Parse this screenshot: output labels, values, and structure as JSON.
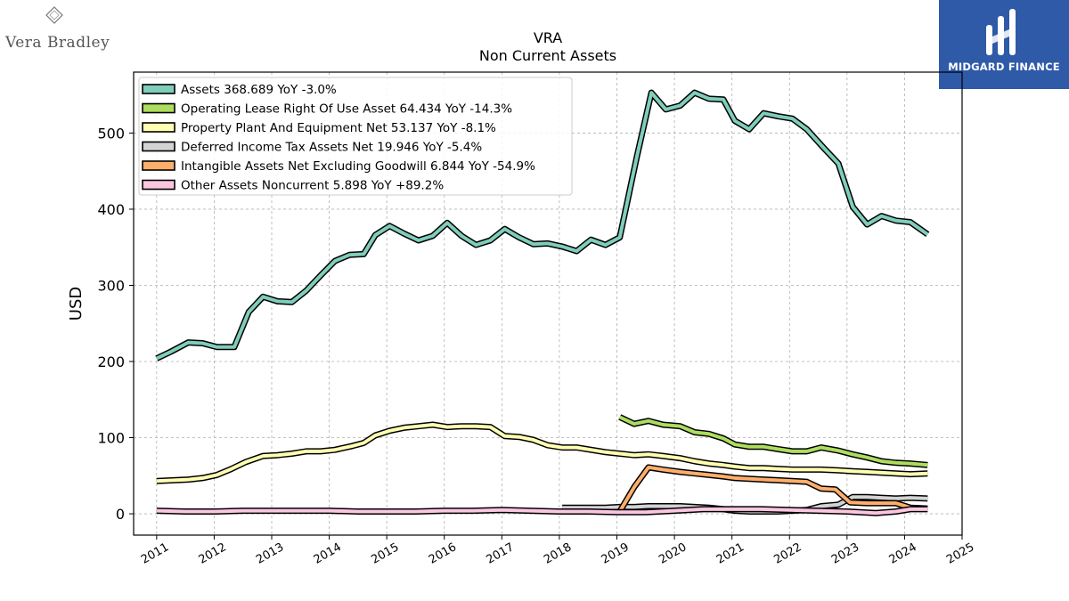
{
  "brand": {
    "left_name": "Vera Bradley",
    "right_name": "MIDGARD FINANCE"
  },
  "chart_data": {
    "type": "line",
    "title": "VRA",
    "subtitle": "Non Current  Assets",
    "xlabel": "",
    "ylabel": "USD",
    "xlim": [
      2010.6,
      2025.0
    ],
    "ylim": [
      -28,
      580
    ],
    "x_ticks": [
      2011,
      2012,
      2013,
      2014,
      2015,
      2016,
      2017,
      2018,
      2019,
      2020,
      2021,
      2022,
      2023,
      2024,
      2025
    ],
    "y_ticks": [
      0,
      100,
      200,
      300,
      400,
      500
    ],
    "grid": true,
    "legend_position": "top-left",
    "series": [
      {
        "name": "Assets  368.689 YoY -3.0%",
        "color": "#7fcdbb",
        "points": [
          [
            2011.0,
            204
          ],
          [
            2011.25,
            213
          ],
          [
            2011.55,
            225
          ],
          [
            2011.8,
            224
          ],
          [
            2012.05,
            219
          ],
          [
            2012.35,
            219
          ],
          [
            2012.6,
            265
          ],
          [
            2012.85,
            285
          ],
          [
            2013.1,
            279
          ],
          [
            2013.35,
            278
          ],
          [
            2013.6,
            293
          ],
          [
            2013.85,
            313
          ],
          [
            2014.1,
            332
          ],
          [
            2014.35,
            340
          ],
          [
            2014.6,
            341
          ],
          [
            2014.8,
            366
          ],
          [
            2015.05,
            378
          ],
          [
            2015.3,
            368
          ],
          [
            2015.55,
            359
          ],
          [
            2015.8,
            365
          ],
          [
            2016.05,
            382
          ],
          [
            2016.3,
            365
          ],
          [
            2016.55,
            353
          ],
          [
            2016.8,
            359
          ],
          [
            2017.05,
            374
          ],
          [
            2017.3,
            363
          ],
          [
            2017.55,
            354
          ],
          [
            2017.8,
            355
          ],
          [
            2018.05,
            351
          ],
          [
            2018.3,
            345
          ],
          [
            2018.55,
            360
          ],
          [
            2018.8,
            353
          ],
          [
            2019.05,
            363
          ],
          [
            2019.35,
            470
          ],
          [
            2019.6,
            553
          ],
          [
            2019.85,
            531
          ],
          [
            2020.1,
            536
          ],
          [
            2020.35,
            553
          ],
          [
            2020.6,
            545
          ],
          [
            2020.85,
            544
          ],
          [
            2021.05,
            516
          ],
          [
            2021.3,
            505
          ],
          [
            2021.55,
            526
          ],
          [
            2021.8,
            522
          ],
          [
            2022.05,
            519
          ],
          [
            2022.3,
            505
          ],
          [
            2022.6,
            480
          ],
          [
            2022.85,
            460
          ],
          [
            2023.1,
            403
          ],
          [
            2023.35,
            380
          ],
          [
            2023.6,
            391
          ],
          [
            2023.85,
            385
          ],
          [
            2024.1,
            383
          ],
          [
            2024.4,
            367
          ]
        ]
      },
      {
        "name": "Operating Lease Right Of Use Asset  64.434 YoY -14.3%",
        "color": "#addd5f",
        "points": [
          [
            2019.05,
            127
          ],
          [
            2019.3,
            118
          ],
          [
            2019.55,
            122
          ],
          [
            2019.8,
            117
          ],
          [
            2020.1,
            115
          ],
          [
            2020.35,
            107
          ],
          [
            2020.6,
            105
          ],
          [
            2020.85,
            99
          ],
          [
            2021.05,
            91
          ],
          [
            2021.3,
            88
          ],
          [
            2021.55,
            88
          ],
          [
            2021.8,
            85
          ],
          [
            2022.05,
            82
          ],
          [
            2022.3,
            82
          ],
          [
            2022.55,
            87
          ],
          [
            2022.85,
            83
          ],
          [
            2023.1,
            78
          ],
          [
            2023.35,
            74
          ],
          [
            2023.6,
            69
          ],
          [
            2023.85,
            67
          ],
          [
            2024.1,
            66
          ],
          [
            2024.4,
            64
          ]
        ]
      },
      {
        "name": "Property Plant And Equipment Net  53.137 YoY -8.1%",
        "color": "#ffffb2",
        "points": [
          [
            2011.0,
            43
          ],
          [
            2011.3,
            44
          ],
          [
            2011.55,
            45
          ],
          [
            2011.8,
            47
          ],
          [
            2012.05,
            51
          ],
          [
            2012.3,
            59
          ],
          [
            2012.55,
            68
          ],
          [
            2012.85,
            76
          ],
          [
            2013.1,
            77
          ],
          [
            2013.35,
            79
          ],
          [
            2013.6,
            82
          ],
          [
            2013.85,
            82
          ],
          [
            2014.1,
            84
          ],
          [
            2014.4,
            89
          ],
          [
            2014.6,
            93
          ],
          [
            2014.8,
            103
          ],
          [
            2015.05,
            109
          ],
          [
            2015.3,
            113
          ],
          [
            2015.55,
            115
          ],
          [
            2015.8,
            117
          ],
          [
            2016.05,
            114
          ],
          [
            2016.3,
            115
          ],
          [
            2016.55,
            115
          ],
          [
            2016.8,
            114
          ],
          [
            2017.05,
            102
          ],
          [
            2017.3,
            101
          ],
          [
            2017.55,
            97
          ],
          [
            2017.8,
            90
          ],
          [
            2018.05,
            87
          ],
          [
            2018.3,
            87
          ],
          [
            2018.55,
            84
          ],
          [
            2018.8,
            81
          ],
          [
            2019.05,
            79
          ],
          [
            2019.3,
            77
          ],
          [
            2019.55,
            78
          ],
          [
            2019.8,
            76
          ],
          [
            2020.1,
            73
          ],
          [
            2020.35,
            69
          ],
          [
            2020.6,
            66
          ],
          [
            2020.85,
            64
          ],
          [
            2021.05,
            62
          ],
          [
            2021.3,
            60
          ],
          [
            2021.55,
            60
          ],
          [
            2021.8,
            59
          ],
          [
            2022.05,
            58
          ],
          [
            2022.3,
            58
          ],
          [
            2022.55,
            58
          ],
          [
            2022.85,
            57
          ],
          [
            2023.1,
            56
          ],
          [
            2023.35,
            55
          ],
          [
            2023.6,
            54
          ],
          [
            2023.85,
            53
          ],
          [
            2024.1,
            52
          ],
          [
            2024.4,
            53
          ]
        ]
      },
      {
        "name": "Deferred Income Tax Assets Net  19.946 YoY -5.4%",
        "color": "#d3d3d3",
        "points": [
          [
            2018.05,
            8
          ],
          [
            2018.3,
            8
          ],
          [
            2018.55,
            8
          ],
          [
            2018.8,
            8
          ],
          [
            2019.05,
            9
          ],
          [
            2019.3,
            9
          ],
          [
            2019.55,
            10
          ],
          [
            2019.8,
            10
          ],
          [
            2020.1,
            10
          ],
          [
            2020.35,
            9
          ],
          [
            2020.6,
            8
          ],
          [
            2020.85,
            6
          ],
          [
            2021.05,
            4
          ],
          [
            2021.3,
            3
          ],
          [
            2021.55,
            3
          ],
          [
            2021.8,
            3
          ],
          [
            2022.05,
            4
          ],
          [
            2022.3,
            5
          ],
          [
            2022.55,
            10
          ],
          [
            2022.85,
            12
          ],
          [
            2023.1,
            22
          ],
          [
            2023.35,
            22
          ],
          [
            2023.6,
            21
          ],
          [
            2023.85,
            20
          ],
          [
            2024.1,
            21
          ],
          [
            2024.4,
            20
          ]
        ]
      },
      {
        "name": "Intangible Assets Net Excluding Goodwill  6.844 YoY -54.9%",
        "color": "#fdae6b",
        "points": [
          [
            2019.05,
            3
          ],
          [
            2019.3,
            35
          ],
          [
            2019.55,
            61
          ],
          [
            2019.8,
            58
          ],
          [
            2020.1,
            55
          ],
          [
            2020.35,
            53
          ],
          [
            2020.6,
            51
          ],
          [
            2020.85,
            49
          ],
          [
            2021.05,
            47
          ],
          [
            2021.3,
            46
          ],
          [
            2021.55,
            45
          ],
          [
            2021.8,
            44
          ],
          [
            2022.05,
            43
          ],
          [
            2022.3,
            42
          ],
          [
            2022.55,
            33
          ],
          [
            2022.8,
            32
          ],
          [
            2023.05,
            15
          ],
          [
            2023.35,
            14
          ],
          [
            2023.6,
            14
          ],
          [
            2023.85,
            14
          ],
          [
            2024.1,
            8
          ],
          [
            2024.4,
            7
          ]
        ]
      },
      {
        "name": "Other Assets Noncurrent  5.898 YoY +89.2%",
        "color": "#fcc5e0",
        "points": [
          [
            2011.0,
            4
          ],
          [
            2011.5,
            3
          ],
          [
            2012.0,
            3
          ],
          [
            2012.5,
            4
          ],
          [
            2013.0,
            4
          ],
          [
            2013.5,
            4
          ],
          [
            2014.0,
            4
          ],
          [
            2014.5,
            3
          ],
          [
            2015.0,
            3
          ],
          [
            2015.5,
            3
          ],
          [
            2016.0,
            4
          ],
          [
            2016.5,
            4
          ],
          [
            2017.0,
            5
          ],
          [
            2017.5,
            4
          ],
          [
            2018.0,
            3
          ],
          [
            2018.5,
            3
          ],
          [
            2019.0,
            2
          ],
          [
            2019.5,
            2
          ],
          [
            2020.0,
            4
          ],
          [
            2020.5,
            6
          ],
          [
            2021.0,
            6
          ],
          [
            2021.5,
            6
          ],
          [
            2022.0,
            5
          ],
          [
            2022.5,
            4
          ],
          [
            2023.0,
            3
          ],
          [
            2023.5,
            1
          ],
          [
            2023.85,
            3
          ],
          [
            2024.1,
            6
          ],
          [
            2024.4,
            6
          ]
        ]
      }
    ]
  }
}
